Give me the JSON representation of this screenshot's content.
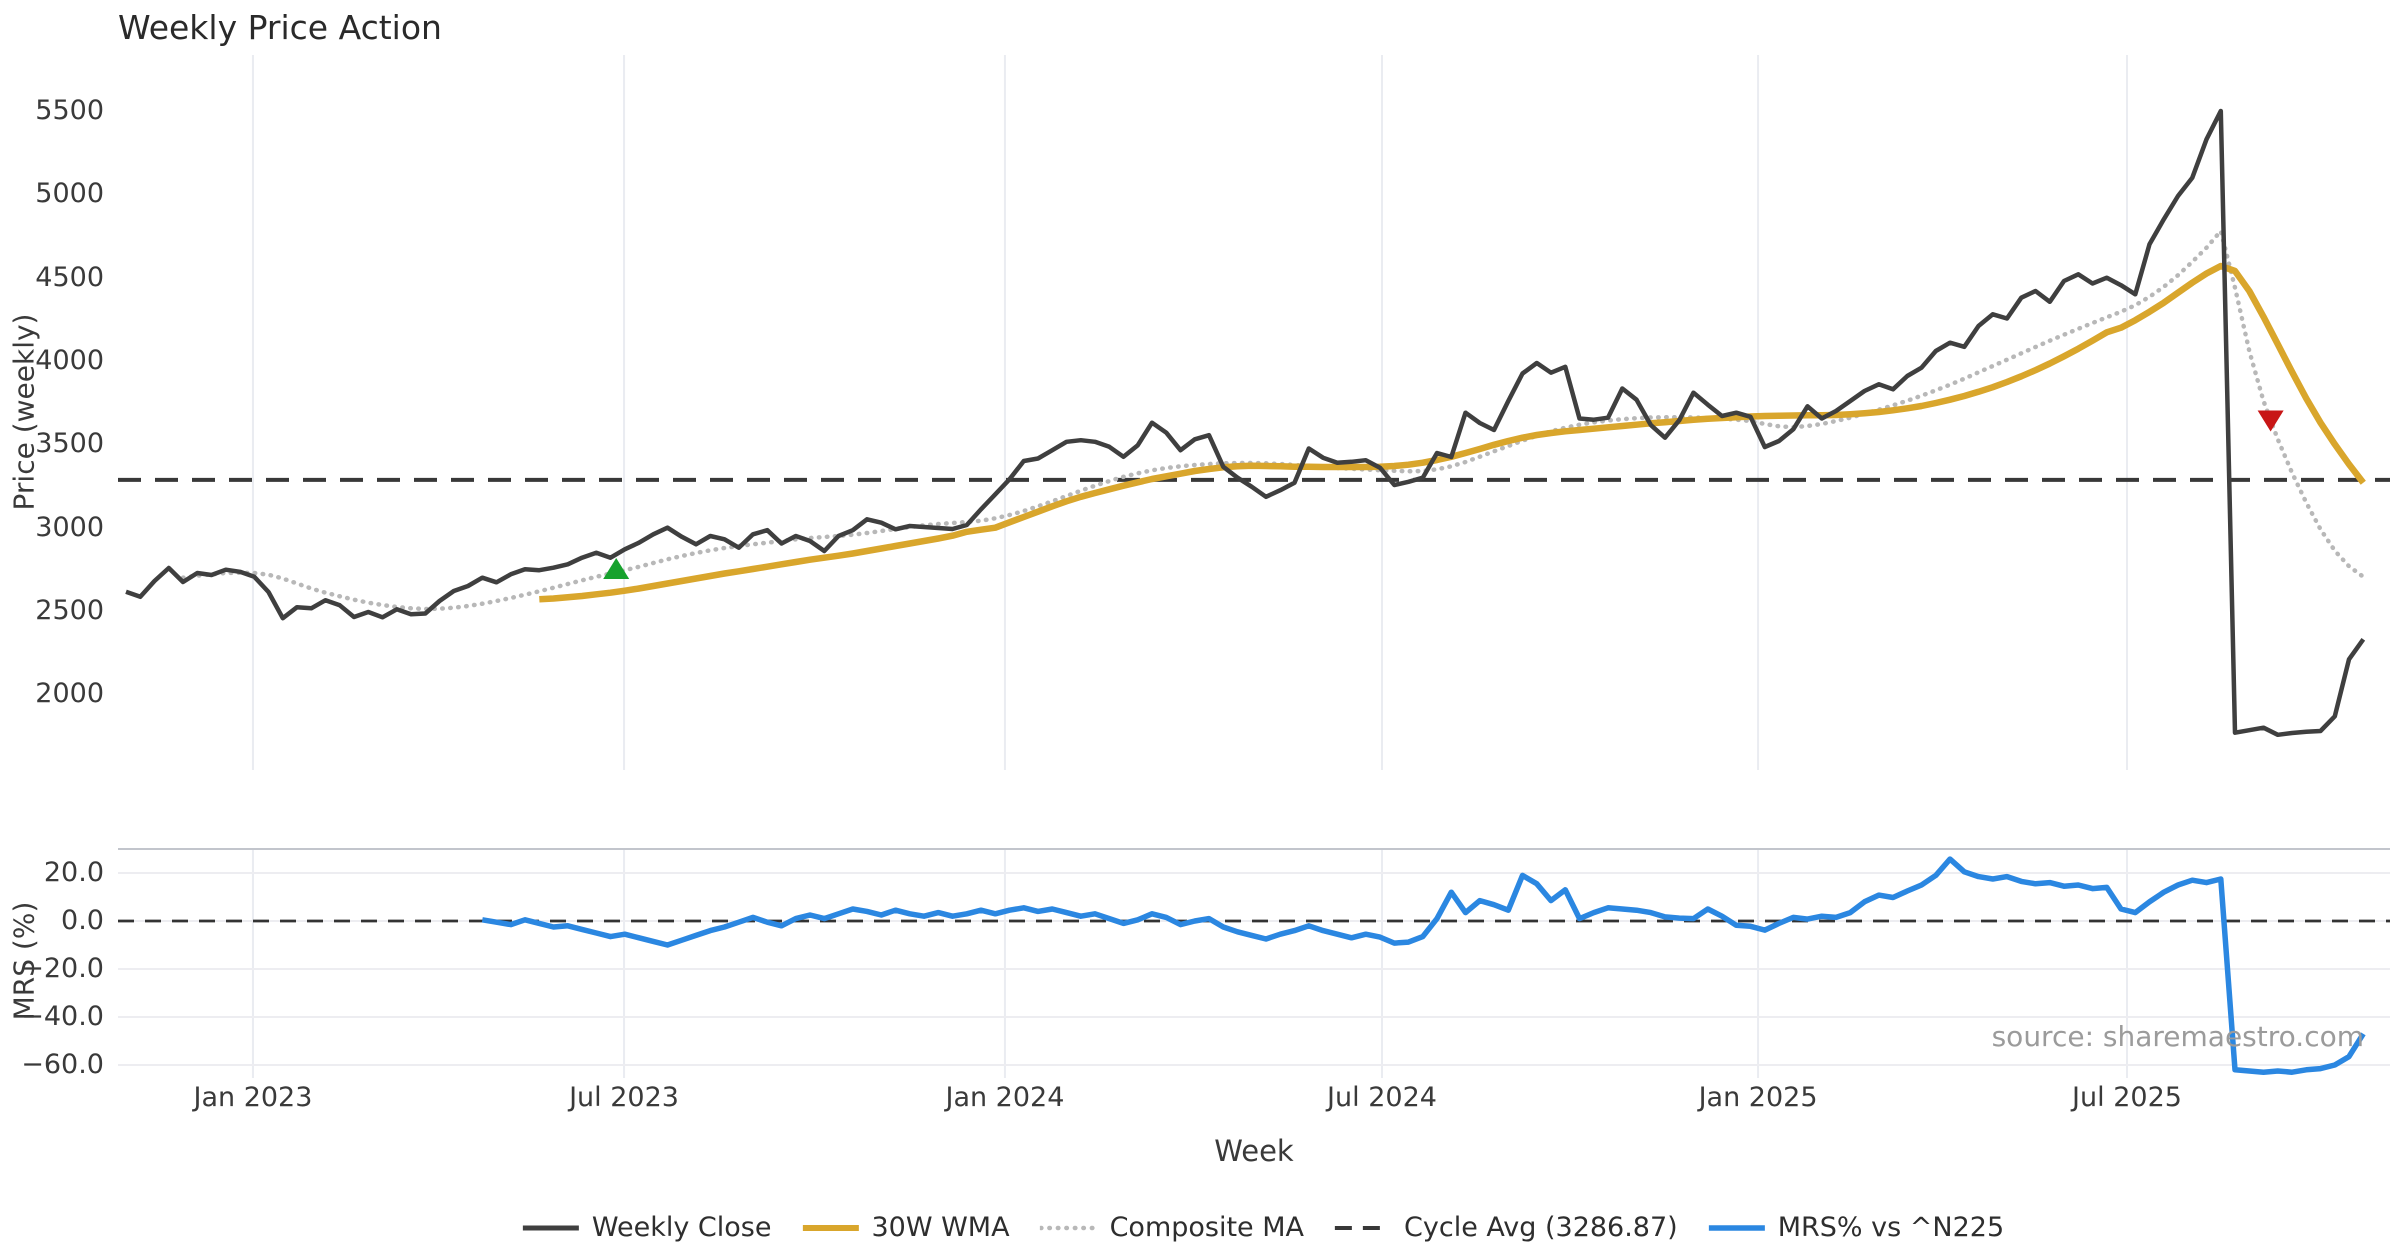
{
  "title": "Weekly Price Action",
  "source_note": "source: sharemaestro.com",
  "colors": {
    "weekly_close": "#3f3f3f",
    "wma": "#d9a62c",
    "composite": "#b8b8b8",
    "cycle_avg": "#383838",
    "mrs": "#2b87e1",
    "buy_marker": "#17a22e",
    "sell_marker": "#c81616",
    "gridline": "#eaecf1",
    "mrs_gridline": "#ededf1",
    "mrs_top_border": "#c2c5cc"
  },
  "legend": [
    {
      "label": "Weekly Close",
      "color": "#3f3f3f",
      "dash": "solid",
      "width": 5
    },
    {
      "label": "30W WMA",
      "color": "#d9a62c",
      "dash": "solid",
      "width": 6
    },
    {
      "label": "Composite MA",
      "color": "#b8b8b8",
      "dash": "dotted",
      "width": 4.5
    },
    {
      "label": "Cycle Avg (3286.87)",
      "color": "#383838",
      "dash": "dashed",
      "width": 4
    },
    {
      "label": "MRS% vs ^N225",
      "color": "#2b87e1",
      "dash": "solid",
      "width": 5.5
    }
  ],
  "chart_data": {
    "type": "line",
    "x_axis": {
      "label": "Week",
      "ticks": [
        {
          "label": "Jan 2023",
          "week": 8.91
        },
        {
          "label": "Jul 2023",
          "week": 34.95
        },
        {
          "label": "Jan 2024",
          "week": 61.68
        },
        {
          "label": "Jul 2024",
          "week": 88.14
        },
        {
          "label": "Jan 2025",
          "week": 114.53
        },
        {
          "label": "Jul 2025",
          "week": 140.42
        }
      ]
    },
    "panels": [
      {
        "name": "price",
        "ylabel": "Price (weekly)",
        "y_ticks": [
          {
            "label": "5500",
            "value": 5500
          },
          {
            "label": "5000",
            "value": 5000
          },
          {
            "label": "4500",
            "value": 4500
          },
          {
            "label": "4000",
            "value": 4000
          },
          {
            "label": "3500",
            "value": 3500
          },
          {
            "label": "3000",
            "value": 3000
          },
          {
            "label": "2500",
            "value": 2500
          },
          {
            "label": "2000",
            "value": 2000
          }
        ],
        "ref_line": {
          "name": "Cycle Avg (3286.87)",
          "value": 3286.87,
          "color": "#383838",
          "dash": "dashed"
        },
        "series": [
          {
            "name": "Weekly Close",
            "color": "#3f3f3f",
            "dash": "solid",
            "stroke_width": 4.5,
            "start_week": 0,
            "values": [
              2615,
              2585,
              2680,
              2758,
              2674,
              2728,
              2716,
              2748,
              2735,
              2705,
              2614,
              2457,
              2523,
              2516,
              2565,
              2534,
              2464,
              2494,
              2462,
              2510,
              2480,
              2485,
              2560,
              2620,
              2650,
              2700,
              2672,
              2720,
              2750,
              2745,
              2760,
              2780,
              2820,
              2850,
              2820,
              2870,
              2910,
              2960,
              3000,
              2945,
              2900,
              2950,
              2930,
              2880,
              2960,
              2985,
              2905,
              2950,
              2920,
              2860,
              2950,
              2985,
              3050,
              3030,
              2990,
              3010,
              3004,
              2998,
              2992,
              3016,
              3110,
              3200,
              3290,
              3400,
              3415,
              3465,
              3515,
              3525,
              3515,
              3485,
              3425,
              3495,
              3630,
              3570,
              3465,
              3530,
              3555,
              3365,
              3300,
              3245,
              3185,
              3225,
              3270,
              3475,
              3420,
              3390,
              3395,
              3405,
              3360,
              3256,
              3275,
              3300,
              3448,
              3424,
              3690,
              3628,
              3586,
              3760,
              3925,
              3988,
              3930,
              3965,
              3655,
              3648,
              3660,
              3835,
              3768,
              3616,
              3540,
              3645,
              3810,
              3738,
              3670,
              3690,
              3665,
              3484,
              3520,
              3590,
              3728,
              3655,
              3700,
              3760,
              3820,
              3860,
              3830,
              3910,
              3960,
              4060,
              4110,
              4085,
              4210,
              4280,
              4255,
              4380,
              4420,
              4355,
              4480,
              4520,
              4465,
              4500,
              4455,
              4400,
              4700,
              4850,
              4990,
              5100,
              5330,
              5500,
              1770,
              1785,
              1800,
              1757,
              1768,
              1775,
              1780,
              1868,
              2210,
              2330
            ]
          },
          {
            "name": "30W WMA",
            "color": "#d9a62c",
            "dash": "solid",
            "stroke_width": 6.5,
            "start_week": 29,
            "values": [
              2570,
              2575,
              2582,
              2590,
              2600,
              2610,
              2622,
              2635,
              2650,
              2665,
              2680,
              2695,
              2710,
              2725,
              2738,
              2752,
              2766,
              2780,
              2794,
              2808,
              2820,
              2832,
              2845,
              2860,
              2875,
              2890,
              2905,
              2920,
              2935,
              2952,
              2975,
              2988,
              3000,
              3032,
              3064,
              3096,
              3128,
              3158,
              3185,
              3208,
              3230,
              3252,
              3272,
              3292,
              3308,
              3324,
              3340,
              3352,
              3362,
              3368,
              3371,
              3370,
              3368,
              3366,
              3365,
              3364,
              3364,
              3364,
              3364,
              3365,
              3370,
              3378,
              3390,
              3406,
              3425,
              3448,
              3472,
              3497,
              3520,
              3540,
              3556,
              3568,
              3578,
              3586,
              3594,
              3602,
              3610,
              3618,
              3626,
              3633,
              3640,
              3647,
              3653,
              3658,
              3663,
              3667,
              3670,
              3672,
              3673,
              3674,
              3675,
              3676,
              3680,
              3686,
              3694,
              3704,
              3716,
              3730,
              3748,
              3768,
              3790,
              3815,
              3843,
              3874,
              3908,
              3945,
              3985,
              4028,
              4074,
              4122,
              4172,
              4200,
              4245,
              4295,
              4350,
              4410,
              4470,
              4525,
              4570,
              4540,
              4420,
              4265,
              4100,
              3935,
              3775,
              3630,
              3500,
              3380,
              3270
            ]
          },
          {
            "name": "Composite MA",
            "color": "#b8b8b8",
            "dash": "dotted",
            "stroke_width": 4.5,
            "start_week": 4,
            "values": [
              2700,
              2712,
              2720,
              2728,
              2730,
              2728,
              2718,
              2695,
              2665,
              2635,
              2610,
              2588,
              2568,
              2550,
              2536,
              2524,
              2516,
              2512,
              2514,
              2520,
              2530,
              2544,
              2560,
              2578,
              2598,
              2618,
              2640,
              2662,
              2684,
              2705,
              2725,
              2745,
              2765,
              2788,
              2810,
              2830,
              2848,
              2864,
              2878,
              2890,
              2900,
              2910,
              2920,
              2930,
              2938,
              2944,
              2950,
              2958,
              2968,
              2980,
              2992,
              3004,
              3014,
              3022,
              3028,
              3034,
              3042,
              3056,
              3076,
              3100,
              3128,
              3158,
              3190,
              3222,
              3252,
              3280,
              3305,
              3326,
              3344,
              3358,
              3368,
              3376,
              3382,
              3386,
              3388,
              3388,
              3386,
              3382,
              3376,
              3370,
              3364,
              3358,
              3353,
              3349,
              3345,
              3341,
              3338,
              3340,
              3350,
              3368,
              3394,
              3426,
              3458,
              3490,
              3522,
              3552,
              3578,
              3600,
              3618,
              3632,
              3643,
              3651,
              3657,
              3661,
              3663,
              3663,
              3661,
              3658,
              3654,
              3648,
              3640,
              3622,
              3608,
              3603,
              3610,
              3622,
              3640,
              3660,
              3684,
              3708,
              3734,
              3762,
              3792,
              3824,
              3858,
              3894,
              3932,
              3970,
              4008,
              4046,
              4084,
              4122,
              4158,
              4193,
              4228,
              4262,
              4296,
              4335,
              4385,
              4445,
              4515,
              4595,
              4680,
              4780,
              4440,
              4060,
              3760,
              3530,
              3330,
              3150,
              2990,
              2862,
              2768,
              2705
            ]
          }
        ],
        "markers": [
          {
            "name": "buy-signal",
            "shape": "triangle-up",
            "color": "#17a22e",
            "week": 34.4,
            "price": 2755
          },
          {
            "name": "sell-signal",
            "shape": "triangle-down",
            "color": "#c81616",
            "week": 150.5,
            "price": 3640
          }
        ]
      },
      {
        "name": "mrs",
        "ylabel": "MRS (%)",
        "y_ticks": [
          {
            "label": "20.0",
            "value": 20
          },
          {
            "label": "0.0",
            "value": 0
          },
          {
            "label": "−20.0",
            "value": -20
          },
          {
            "label": "−40.0",
            "value": -40
          },
          {
            "label": "−60.0",
            "value": -60
          }
        ],
        "ref_line": {
          "name": "zero-line",
          "value": 0,
          "color": "#333333",
          "dash": "dashed"
        },
        "series": [
          {
            "name": "MRS% vs ^N225",
            "color": "#2b87e1",
            "dash": "solid",
            "stroke_width": 5.5,
            "start_week": 25,
            "values": [
              0.5,
              -0.5,
              -1.5,
              0.5,
              -1.0,
              -2.5,
              -2.0,
              -3.5,
              -5.0,
              -6.5,
              -5.5,
              -7.0,
              -8.5,
              -10.0,
              -8.0,
              -6.0,
              -4.0,
              -2.5,
              -0.5,
              1.5,
              -0.5,
              -2.0,
              1.0,
              2.5,
              1.0,
              3.0,
              5.0,
              4.0,
              2.5,
              4.5,
              3.0,
              2.0,
              3.5,
              2.0,
              3.0,
              4.5,
              3.0,
              4.5,
              5.5,
              4.0,
              5.0,
              3.5,
              2.0,
              3.0,
              1.0,
              -1.0,
              0.5,
              3.0,
              1.5,
              -1.5,
              0.0,
              1.0,
              -2.5,
              -4.5,
              -6.0,
              -7.5,
              -5.5,
              -4.0,
              -2.0,
              -4.0,
              -5.5,
              -7.0,
              -5.5,
              -6.7,
              -9.2,
              -8.8,
              -6.5,
              1.0,
              12.0,
              3.5,
              8.5,
              6.8,
              4.5,
              19.0,
              15.5,
              8.5,
              13.0,
              1.0,
              3.5,
              5.5,
              5.0,
              4.5,
              3.5,
              1.7,
              1.2,
              1.0,
              5.0,
              2.0,
              -1.8,
              -2.2,
              -3.8,
              -1.0,
              1.5,
              0.8,
              2.0,
              1.5,
              3.5,
              8.0,
              10.8,
              9.8,
              12.5,
              15.0,
              19.0,
              25.8,
              20.5,
              18.5,
              17.5,
              18.5,
              16.5,
              15.5,
              16.0,
              14.5,
              15.0,
              13.5,
              14.0,
              5.0,
              3.5,
              8.0,
              12.0,
              15.0,
              17.0,
              16.0,
              17.5,
              -62.0,
              -62.5,
              -63.0,
              -62.5,
              -63.0,
              -62.0,
              -61.5,
              -60.0,
              -56.5,
              -47.0
            ]
          }
        ]
      }
    ]
  }
}
